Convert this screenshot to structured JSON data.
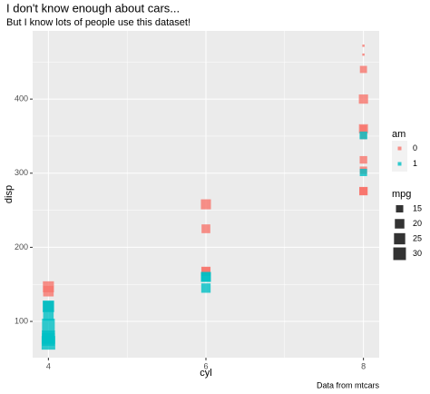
{
  "chart_data": {
    "type": "scatter",
    "title": "I don't know enough about cars...",
    "subtitle": "But I know lots of people use this dataset!",
    "caption": "Data from mtcars",
    "xlabel": "cyl",
    "ylabel": "disp",
    "color_legend_title": "am",
    "size_legend_title": "mpg",
    "xlim": [
      3.8,
      8.2
    ],
    "xticks": [
      4,
      6,
      8
    ],
    "ylim": [
      51.06,
      492.05
    ],
    "yticks": [
      100,
      200,
      300,
      400
    ],
    "grid": true,
    "marker": "square",
    "alpha": 0.8,
    "size_ticks": [
      15,
      20,
      25,
      30
    ],
    "series": [
      {
        "name": "0",
        "color": "#F8766D",
        "x": [
          6,
          8,
          6,
          8,
          4,
          4,
          6,
          6,
          8,
          8,
          8,
          8,
          8,
          8,
          4,
          8,
          8,
          8,
          8
        ],
        "values": [
          258,
          360,
          225,
          360,
          146.7,
          140.8,
          167.6,
          167.6,
          275.8,
          275.8,
          275.8,
          472,
          460,
          440,
          120.1,
          318,
          304,
          350,
          400
        ],
        "sizes": [
          21.4,
          18.7,
          18.1,
          14.3,
          24.4,
          22.8,
          19.2,
          17.8,
          16.4,
          17.3,
          15.2,
          10.4,
          10.4,
          14.7,
          21.5,
          15.5,
          15.2,
          13.3,
          19.2
        ]
      },
      {
        "name": "1",
        "color": "#00BFC4",
        "x": [
          6,
          6,
          4,
          4,
          4,
          4,
          4,
          4,
          4,
          8,
          6,
          8,
          4
        ],
        "values": [
          160,
          160,
          108,
          78.7,
          75.7,
          71.1,
          79,
          120.3,
          95.1,
          351,
          145,
          301,
          121
        ],
        "sizes": [
          21,
          21,
          22.8,
          32.4,
          30.4,
          33.9,
          27.3,
          26,
          30.4,
          15.8,
          19.7,
          15,
          21.4
        ]
      }
    ]
  }
}
